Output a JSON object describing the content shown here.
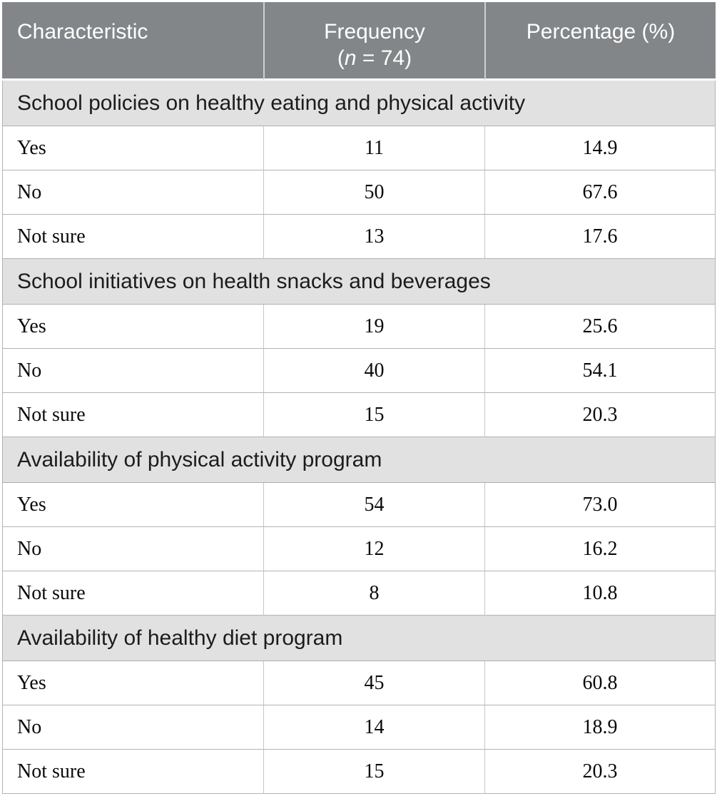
{
  "colors": {
    "header_bg": "#838688",
    "header_text": "#ffffff",
    "section_bg": "#e2e1e2",
    "section_text": "#1c1c1c",
    "body_text": "#0a0a0a",
    "border": "#b3b3b4"
  },
  "header": {
    "col1": "Characteristic",
    "col2_line1": "Frequency",
    "col2_open": "(",
    "col2_n": "n",
    "col2_rest": " = 74)",
    "col3": "Percentage (%)"
  },
  "sections": [
    {
      "title": "School policies on healthy eating and physical activity",
      "rows": [
        {
          "label": "Yes",
          "frequency": "11",
          "percentage": "14.9"
        },
        {
          "label": "No",
          "frequency": "50",
          "percentage": "67.6"
        },
        {
          "label": "Not sure",
          "frequency": "13",
          "percentage": "17.6"
        }
      ]
    },
    {
      "title": "School initiatives on health snacks and beverages",
      "rows": [
        {
          "label": "Yes",
          "frequency": "19",
          "percentage": "25.6"
        },
        {
          "label": "No",
          "frequency": "40",
          "percentage": "54.1"
        },
        {
          "label": "Not sure",
          "frequency": "15",
          "percentage": "20.3"
        }
      ]
    },
    {
      "title": "Availability of physical activity program",
      "rows": [
        {
          "label": "Yes",
          "frequency": "54",
          "percentage": "73.0"
        },
        {
          "label": "No",
          "frequency": "12",
          "percentage": "16.2"
        },
        {
          "label": "Not sure",
          "frequency": "8",
          "percentage": "10.8"
        }
      ]
    },
    {
      "title": "Availability of healthy diet program",
      "rows": [
        {
          "label": "Yes",
          "frequency": "45",
          "percentage": "60.8"
        },
        {
          "label": "No",
          "frequency": "14",
          "percentage": "18.9"
        },
        {
          "label": "Not sure",
          "frequency": "15",
          "percentage": "20.3"
        }
      ]
    }
  ],
  "chart_data": {
    "type": "table",
    "title": "Characteristic / Frequency (n = 74) / Percentage (%)",
    "columns": [
      "Characteristic",
      "Frequency (n = 74)",
      "Percentage (%)"
    ],
    "sections": [
      {
        "section": "School policies on healthy eating and physical activity",
        "rows": [
          [
            "Yes",
            11,
            14.9
          ],
          [
            "No",
            50,
            67.6
          ],
          [
            "Not sure",
            13,
            17.6
          ]
        ]
      },
      {
        "section": "School initiatives on health snacks and beverages",
        "rows": [
          [
            "Yes",
            19,
            25.6
          ],
          [
            "No",
            40,
            54.1
          ],
          [
            "Not sure",
            15,
            20.3
          ]
        ]
      },
      {
        "section": "Availability of physical activity program",
        "rows": [
          [
            "Yes",
            54,
            73.0
          ],
          [
            "No",
            12,
            16.2
          ],
          [
            "Not sure",
            8,
            10.8
          ]
        ]
      },
      {
        "section": "Availability of healthy diet program",
        "rows": [
          [
            "Yes",
            45,
            60.8
          ],
          [
            "No",
            14,
            18.9
          ],
          [
            "Not sure",
            15,
            20.3
          ]
        ]
      }
    ]
  }
}
